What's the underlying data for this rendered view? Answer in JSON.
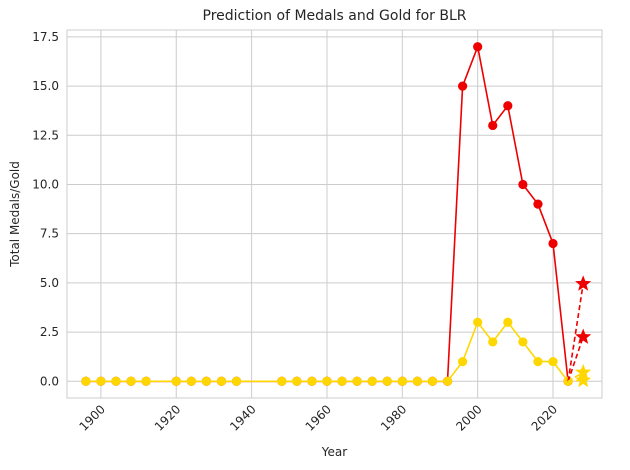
{
  "chart_data": {
    "type": "line",
    "title": "Prediction of Medals and Gold for BLR",
    "xlabel": "Year",
    "ylabel": "Total Medals/Gold",
    "xlim": [
      1891,
      2033
    ],
    "ylim": [
      -0.85,
      17.85
    ],
    "xticks": [
      1900,
      1920,
      1940,
      1960,
      1980,
      2000,
      2020
    ],
    "yticks": [
      0.0,
      2.5,
      5.0,
      7.5,
      10.0,
      12.5,
      15.0,
      17.5
    ],
    "xtick_labels": [
      "1900",
      "1920",
      "1940",
      "1960",
      "1980",
      "2000",
      "2020"
    ],
    "ytick_labels": [
      "0.0",
      "2.5",
      "5.0",
      "7.5",
      "10.0",
      "12.5",
      "15.0",
      "17.5"
    ],
    "grid": true,
    "x": [
      1896,
      1900,
      1904,
      1908,
      1912,
      1920,
      1924,
      1928,
      1932,
      1936,
      1948,
      1952,
      1956,
      1960,
      1964,
      1968,
      1972,
      1976,
      1980,
      1984,
      1988,
      1992,
      1996,
      2000,
      2004,
      2008,
      2012,
      2016,
      2020,
      2024
    ],
    "series": [
      {
        "role": "total",
        "color": "#ee0000",
        "values": [
          0,
          0,
          0,
          0,
          0,
          0,
          0,
          0,
          0,
          0,
          0,
          0,
          0,
          0,
          0,
          0,
          0,
          0,
          0,
          0,
          0,
          0,
          15,
          17,
          13,
          14,
          10,
          9,
          7,
          0
        ]
      },
      {
        "role": "gold",
        "color": "#ffd700",
        "values": [
          0,
          0,
          0,
          0,
          0,
          0,
          0,
          0,
          0,
          0,
          0,
          0,
          0,
          0,
          0,
          0,
          0,
          0,
          0,
          0,
          0,
          0,
          1,
          3,
          2,
          3,
          2,
          1,
          1,
          0
        ]
      }
    ],
    "predictions": [
      {
        "role": "total",
        "color": "#ee0000",
        "from": [
          2024,
          0
        ],
        "points": [
          [
            2028,
            4.95
          ],
          [
            2028,
            2.25
          ]
        ]
      },
      {
        "role": "gold",
        "color": "#ffd700",
        "from": [
          2024,
          0
        ],
        "points": [
          [
            2028,
            0.45
          ],
          [
            2028,
            0.05
          ]
        ]
      }
    ]
  }
}
